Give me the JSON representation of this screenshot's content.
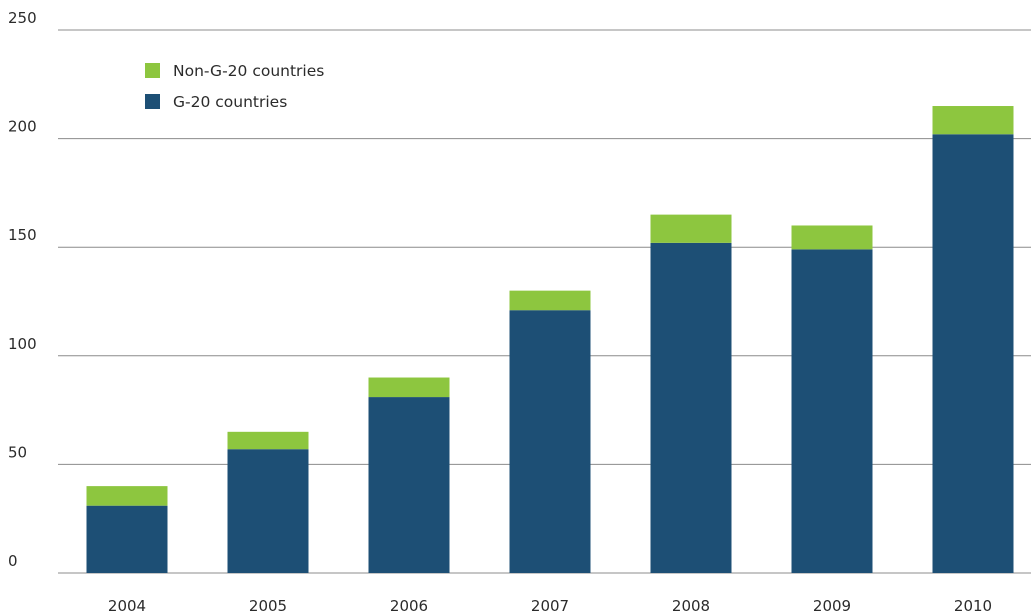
{
  "chart_data": {
    "type": "bar",
    "stacked": true,
    "categories": [
      "2004",
      "2005",
      "2006",
      "2007",
      "2008",
      "2009",
      "2010"
    ],
    "series": [
      {
        "name": "G-20 countries",
        "color": "#1d4f75",
        "values": [
          31,
          57,
          81,
          121,
          152,
          149,
          202
        ]
      },
      {
        "name": "Non-G-20 countries",
        "color": "#8dc63f",
        "values": [
          9,
          8,
          9,
          9,
          13,
          11,
          13
        ]
      }
    ],
    "legend": {
      "position": "top-left",
      "items": [
        {
          "label": "Non-G-20 countries",
          "color": "#8dc63f"
        },
        {
          "label": "G-20 countries",
          "color": "#1d4f75"
        }
      ]
    },
    "y_ticks": [
      "0",
      "50",
      "100",
      "150",
      "200",
      "250"
    ],
    "ylim": [
      0,
      250
    ],
    "grid": true,
    "title": "",
    "xlabel": "",
    "ylabel": ""
  }
}
